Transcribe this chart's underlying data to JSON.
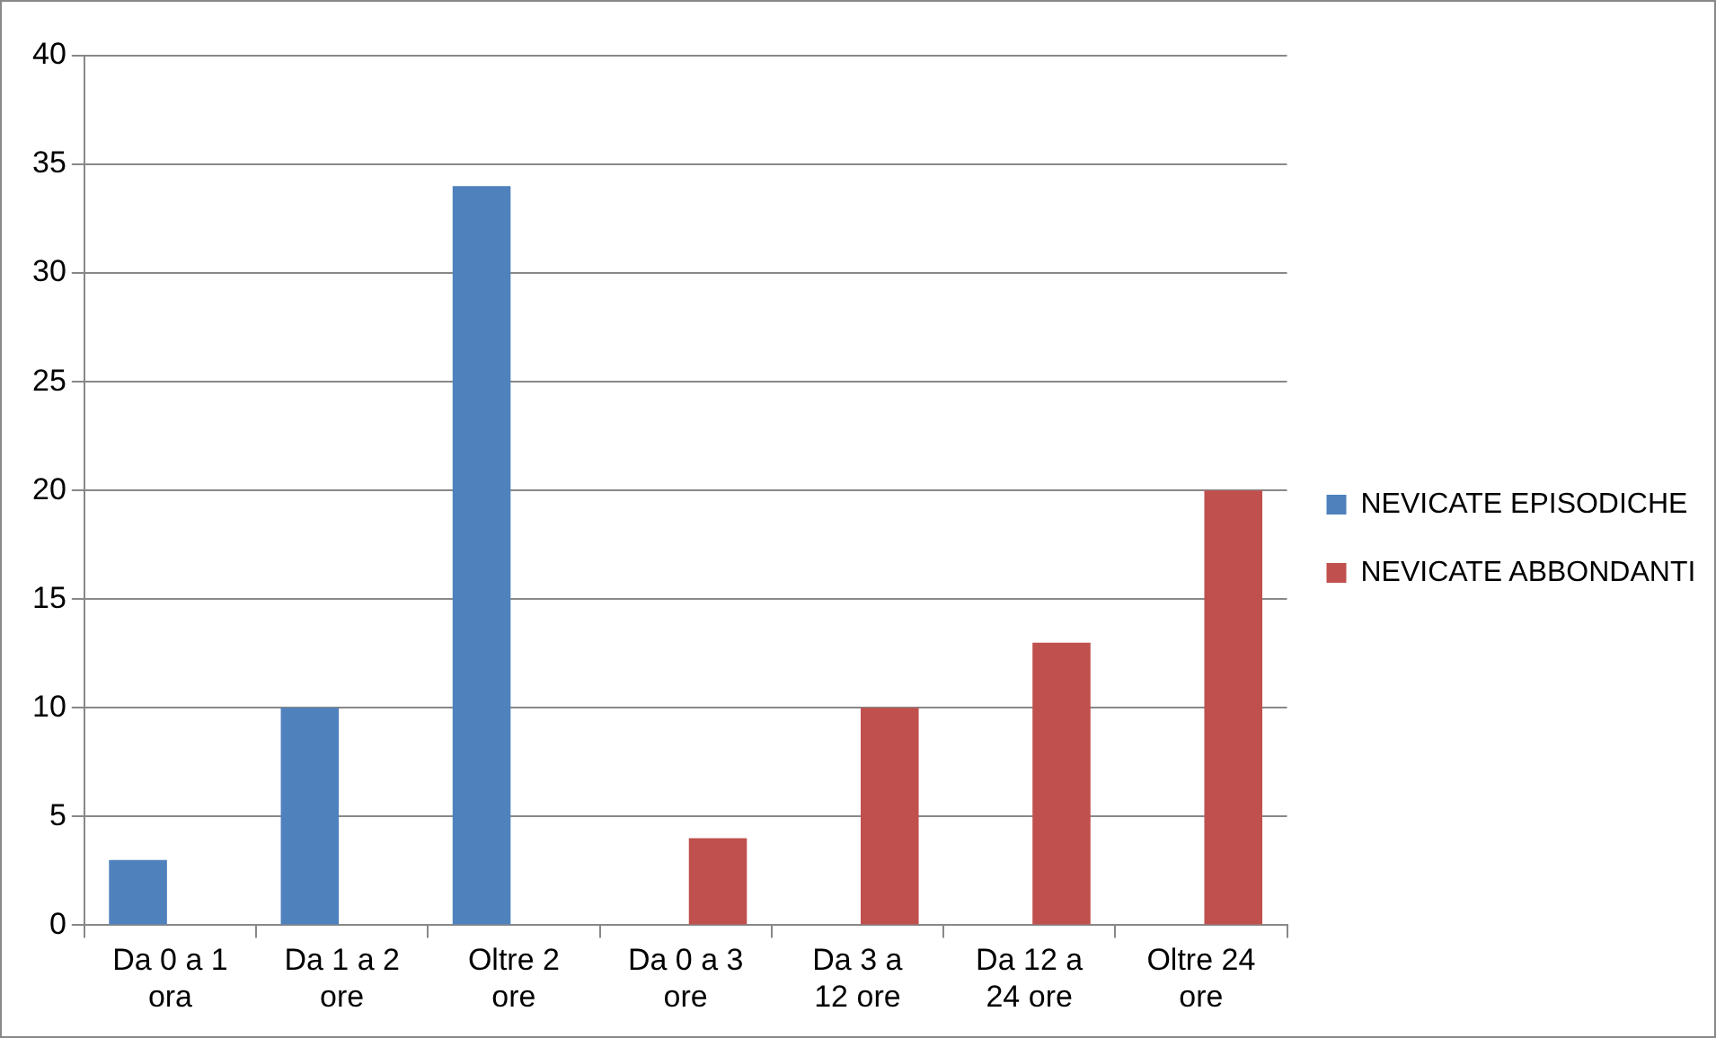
{
  "chart_data": {
    "type": "bar",
    "categories": [
      "Da 0 a 1 ora",
      "Da 1 a 2 ore",
      "Oltre 2 ore",
      "Da 0 a 3 ore",
      "Da 3 a 12 ore",
      "Da 12 a 24 ore",
      "Oltre 24 ore"
    ],
    "series": [
      {
        "name": "NEVICATE EPISODICHE",
        "color": "#4f81bd",
        "values": [
          3,
          10,
          34,
          null,
          null,
          null,
          null
        ]
      },
      {
        "name": "NEVICATE ABBONDANTI",
        "color": "#c0504d",
        "values": [
          null,
          null,
          null,
          4,
          10,
          13,
          20
        ]
      }
    ],
    "ylim": [
      0,
      40
    ],
    "yticks": [
      0,
      5,
      10,
      15,
      20,
      25,
      30,
      35,
      40
    ],
    "grid": "y",
    "legend": "right"
  }
}
